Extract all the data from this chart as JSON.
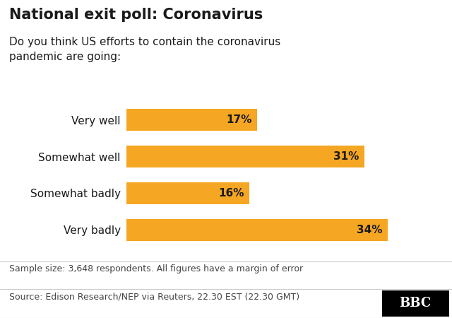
{
  "title": "National exit poll: Coronavirus",
  "subtitle": "Do you think US efforts to contain the coronavirus\npandemic are going:",
  "categories": [
    "Very well",
    "Somewhat well",
    "Somewhat badly",
    "Very badly"
  ],
  "values": [
    17,
    31,
    16,
    34
  ],
  "bar_color": "#F5A623",
  "bar_label_color": "#1a1a1a",
  "background_color": "#ffffff",
  "text_color": "#1a1a1a",
  "footnote1": "Sample size: 3,648 respondents. All figures have a margin of error",
  "footnote2": "Source: Edison Research/NEP via Reuters, 22.30 EST (22.30 GMT)",
  "bbc_text": "BBC",
  "xlim": [
    0,
    40
  ],
  "title_fontsize": 15,
  "subtitle_fontsize": 11,
  "label_fontsize": 11,
  "bar_value_fontsize": 11,
  "footnote_fontsize": 9
}
